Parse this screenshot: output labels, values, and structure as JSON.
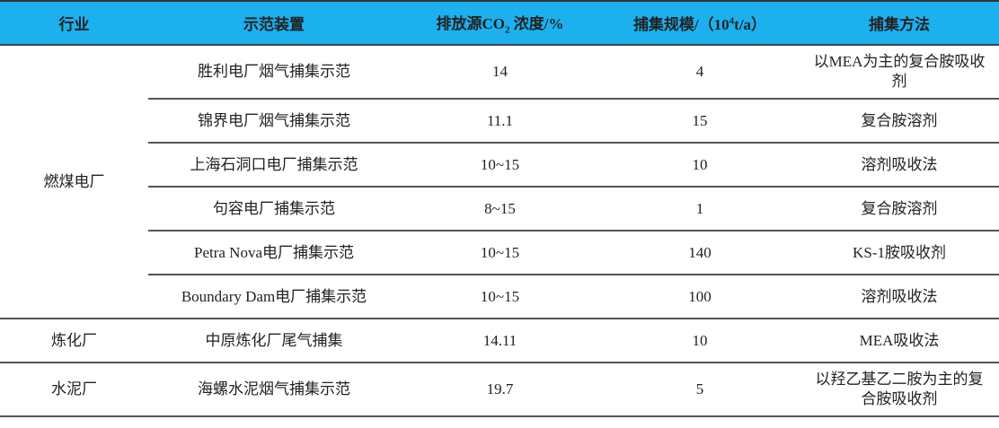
{
  "header": {
    "industry": "行业",
    "device": "示范装置",
    "concentration_prefix": "排放源CO",
    "concentration_sub": "2",
    "concentration_suffix": " 浓度/%",
    "scale_prefix": "捕集规模/（10",
    "scale_sup": "4",
    "scale_suffix": "t/a）",
    "method": "捕集方法"
  },
  "groups": [
    {
      "industry": "燃煤电厂",
      "rows": [
        {
          "device": "胜利电厂烟气捕集示范",
          "concentration": "14",
          "scale": "4",
          "method": "以MEA为主的复合胺吸收剂"
        },
        {
          "device": "锦界电厂烟气捕集示范",
          "concentration": "11.1",
          "scale": "15",
          "method": "复合胺溶剂"
        },
        {
          "device": "上海石洞口电厂捕集示范",
          "concentration": "10~15",
          "scale": "10",
          "method": "溶剂吸收法"
        },
        {
          "device": "句容电厂捕集示范",
          "concentration": "8~15",
          "scale": "1",
          "method": "复合胺溶剂"
        },
        {
          "device": "Petra Nova电厂捕集示范",
          "concentration": "10~15",
          "scale": "140",
          "method": "KS-1胺吸收剂"
        },
        {
          "device": "Boundary Dam电厂捕集示范",
          "concentration": "10~15",
          "scale": "100",
          "method": "溶剂吸收法"
        }
      ]
    },
    {
      "industry": "炼化厂",
      "rows": [
        {
          "device": "中原炼化厂尾气捕集",
          "concentration": "14.11",
          "scale": "10",
          "method": "MEA吸收法"
        }
      ]
    },
    {
      "industry": "水泥厂",
      "rows": [
        {
          "device": "海螺水泥烟气捕集示范",
          "concentration": "19.7",
          "scale": "5",
          "method": "以羟乙基乙二胺为主的复合胺吸收剂"
        }
      ]
    }
  ],
  "colors": {
    "header_bg": "#1cb0ee"
  }
}
